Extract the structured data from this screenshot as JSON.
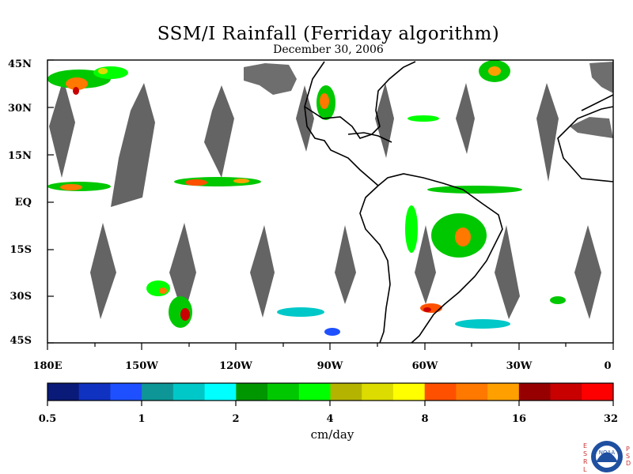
{
  "title": "SSM/I Rainfall (Ferriday algorithm)",
  "date": "December 30, 2006",
  "lat_labels": [
    "45N",
    "30N",
    "15N",
    "EQ",
    "15S",
    "30S",
    "45S"
  ],
  "lon_labels": [
    "180E",
    "150W",
    "120W",
    "90W",
    "60W",
    "30W",
    "0"
  ],
  "colorbar": {
    "tick_labels": [
      "0.5",
      "1",
      "2",
      "4",
      "8",
      "16",
      "32"
    ],
    "units": "cm/day",
    "colors": [
      "#0a1a78",
      "#1032c0",
      "#1e50ff",
      "#0e9696",
      "#00c8c8",
      "#00ffff",
      "#009600",
      "#00c800",
      "#00ff00",
      "#b4b400",
      "#dcdc00",
      "#ffff00",
      "#ff5000",
      "#ff7800",
      "#ffa000",
      "#960000",
      "#c80000",
      "#ff0000"
    ]
  },
  "logo": {
    "org": "NOAA",
    "left_letters": [
      "E",
      "S",
      "R",
      "L"
    ],
    "right_letters": [
      "P",
      "S",
      "D"
    ]
  },
  "colors": {
    "land_outline": "#000000",
    "swath_gap": "#646464",
    "missing_land": "#6e6e6e"
  }
}
